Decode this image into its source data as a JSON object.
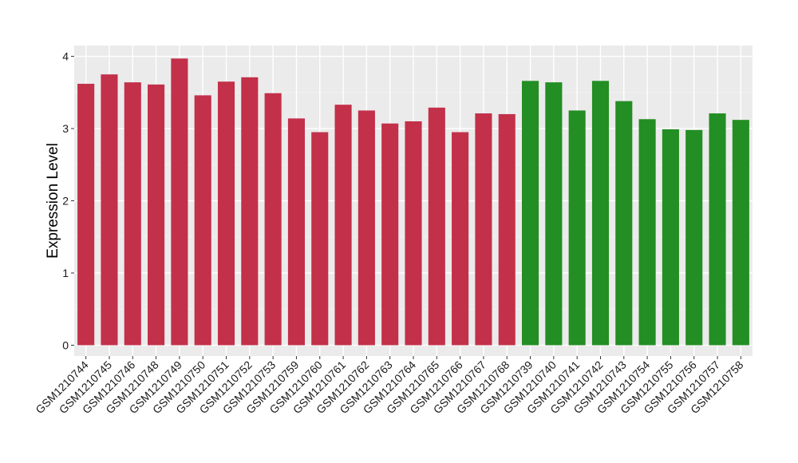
{
  "chart_data": {
    "type": "bar",
    "title": "",
    "xlabel": "",
    "ylabel": "Expression Level",
    "ylim": [
      -0.15,
      4.15
    ],
    "yticks": [
      0,
      1,
      2,
      3,
      4
    ],
    "grid": true,
    "background": "#ebebeb",
    "categories": [
      "GSM1210744",
      "GSM1210745",
      "GSM1210746",
      "GSM1210748",
      "GSM1210749",
      "GSM1210750",
      "GSM1210751",
      "GSM1210752",
      "GSM1210753",
      "GSM1210759",
      "GSM1210760",
      "GSM1210761",
      "GSM1210762",
      "GSM1210763",
      "GSM1210764",
      "GSM1210765",
      "GSM1210766",
      "GSM1210767",
      "GSM1210768",
      "GSM1210739",
      "GSM1210740",
      "GSM1210741",
      "GSM1210742",
      "GSM1210743",
      "GSM1210754",
      "GSM1210755",
      "GSM1210756",
      "GSM1210757",
      "GSM1210758"
    ],
    "values": [
      3.62,
      3.75,
      3.64,
      3.61,
      3.97,
      3.46,
      3.65,
      3.71,
      3.49,
      3.14,
      2.95,
      3.33,
      3.25,
      3.07,
      3.1,
      3.29,
      2.95,
      3.21,
      3.2,
      3.66,
      3.64,
      3.25,
      3.66,
      3.38,
      3.13,
      2.99,
      2.98,
      3.21,
      3.12
    ],
    "groups": [
      {
        "color": "#c3304a",
        "count": 19
      },
      {
        "color": "#238e23",
        "count": 10
      }
    ]
  }
}
